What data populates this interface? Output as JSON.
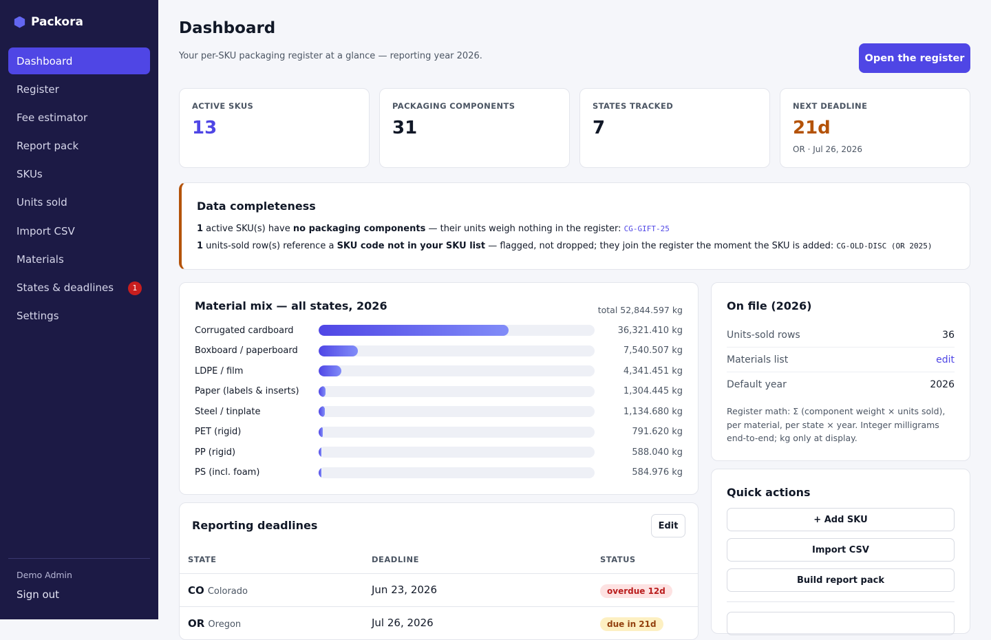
{
  "brand": "Packora",
  "nav": [
    "Dashboard",
    "Register",
    "Fee estimator",
    "Report pack",
    "SKUs",
    "Units sold",
    "Import CSV",
    "Materials",
    "States & deadlines",
    "Settings"
  ],
  "nav_badge": "1",
  "user": "Demo Admin",
  "sign_out": "Sign out",
  "header": {
    "title": "Dashboard",
    "subtitle": "Your per-SKU packaging register at a glance — reporting year 2026.",
    "button": "Open the register"
  },
  "stats": [
    {
      "label": "ACTIVE SKUS",
      "value": "13",
      "color": "#4f46e5"
    },
    {
      "label": "PACKAGING COMPONENTS",
      "value": "31",
      "color": "#111827"
    },
    {
      "label": "STATES TRACKED",
      "value": "7",
      "color": "#111827"
    },
    {
      "label": "NEXT DEADLINE",
      "value": "21d",
      "color": "#b45309",
      "note": "OR · Jul 26, 2026"
    }
  ],
  "completeness": {
    "title": "Data completeness",
    "lines": [
      [
        {
          "text": "1",
          "style": "bold"
        },
        {
          "text": " active SKU(s) have ",
          "style": "plain"
        },
        {
          "text": "no packaging components",
          "style": "bold"
        },
        {
          "text": " — their units weigh nothing in the register: ",
          "style": "plain"
        },
        {
          "text": "CG-GIFT-25",
          "style": "code-accent"
        }
      ],
      [
        {
          "text": "1",
          "style": "bold"
        },
        {
          "text": " units-sold row(s) reference a ",
          "style": "plain"
        },
        {
          "text": "SKU code not in your SKU list",
          "style": "bold"
        },
        {
          "text": " — flagged, not dropped; they join the register the moment the SKU is added: ",
          "style": "plain"
        },
        {
          "text": "CG-OLD-DISC (OR 2025)",
          "style": "code"
        }
      ]
    ]
  },
  "chart_data": {
    "type": "bar",
    "title": "Material mix — all states, 2026",
    "total": {
      "value": 52844.597,
      "label": "total 52,844.597 kg"
    },
    "categories": [
      "Corrugated cardboard",
      "Boxboard / paperboard",
      "LDPE / film",
      "Paper (labels & inserts)",
      "Steel / tinplate",
      "PET (rigid)",
      "PP (rigid)",
      "PS (incl. foam)"
    ],
    "values": [
      36321.41,
      7540.507,
      4341.451,
      1304.445,
      1134.68,
      791.62,
      588.04,
      584.976
    ],
    "value_labels": [
      "36,321.410 kg",
      "7,540.507 kg",
      "4,341.451 kg",
      "1,304.445 kg",
      "1,134.680 kg",
      "791.620 kg",
      "588.040 kg",
      "584.976 kg"
    ],
    "color": "#4f46e5"
  },
  "on_file": {
    "title": "On file (2026)",
    "rows": [
      [
        "Units-sold rows",
        "36"
      ],
      [
        "Materials list",
        "edit"
      ],
      [
        "Default year",
        "2026"
      ]
    ],
    "note": "Register math: Σ (component weight × units sold), per material, per state × year. Integer milligrams end-to-end; kg only at display."
  },
  "quick_actions": {
    "title": "Quick actions",
    "buttons": [
      "+ Add SKU",
      "Import CSV",
      "Build report pack"
    ]
  },
  "deadlines": {
    "title": "Reporting deadlines",
    "edit": "Edit",
    "columns": [
      "STATE",
      "DEADLINE",
      "STATUS"
    ],
    "rows": [
      {
        "code": "CO",
        "name": "Colorado",
        "deadline": "Jun 23, 2026",
        "status": "overdue 12d",
        "tone": "red"
      },
      {
        "code": "OR",
        "name": "Oregon",
        "deadline": "Jul 26, 2026",
        "status": "due in 21d",
        "tone": "amber"
      }
    ]
  }
}
